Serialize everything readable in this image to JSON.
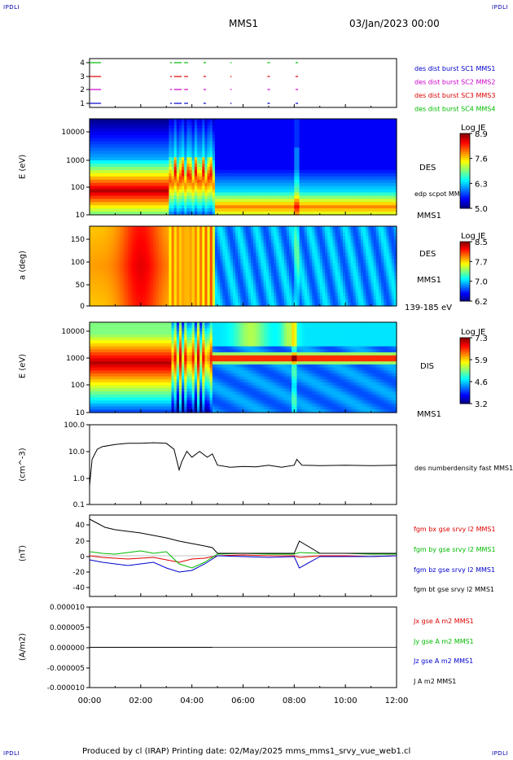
{
  "corner_labels": [
    "IPDLI",
    "IPDLI",
    "IPDLI",
    "IPDLI"
  ],
  "header": {
    "mission": "MMS1",
    "date": "03/Jan/2023 00:00"
  },
  "footer": "Produced by cl (IRAP)   Printing date: 02/May/2025   mms_mms1_srvy_vue_web1.cl",
  "colors": {
    "red": "#dd0000",
    "green": "#00bb00",
    "blue": "#0000cc",
    "magenta": "#cc00cc",
    "black": "#000000"
  },
  "chart_data": [
    {
      "type": "line",
      "name": "burst-availability",
      "yticks": [
        "4",
        "3",
        "2",
        "1"
      ],
      "xrange": [
        0,
        12
      ],
      "legend": [
        {
          "label": "des dist burst SC1 MMS1",
          "color": "#0000cc"
        },
        {
          "label": "des dist burst SC2 MMS2",
          "color": "#cc00cc"
        },
        {
          "label": "des dist burst SC3 MMS3",
          "color": "#dd0000"
        },
        {
          "label": "des dist burst SC4 MMS4",
          "color": "#00bb00"
        }
      ],
      "intervals": [
        [
          0.0,
          0.45
        ],
        [
          3.15,
          3.22
        ],
        [
          3.3,
          3.6
        ],
        [
          3.7,
          3.85
        ],
        [
          4.45,
          4.55
        ],
        [
          5.5,
          5.55
        ],
        [
          6.95,
          7.05
        ],
        [
          8.05,
          8.15
        ]
      ]
    },
    {
      "type": "heatmap",
      "name": "des-energy",
      "ylabel": "E (eV)",
      "yticks": [
        "10000",
        "1000",
        "100",
        "10"
      ],
      "yrange": [
        10,
        30000
      ],
      "ylog": true,
      "side_labels": [
        "DES",
        "edp scpot MMS1",
        "MMS1"
      ],
      "colorbar": {
        "title": "Log JE",
        "ticks": [
          "8.9",
          "7.6",
          "6.3",
          "5.0"
        ]
      }
    },
    {
      "type": "heatmap",
      "name": "des-pitch-angle",
      "ylabel": "a (deg)",
      "yticks": [
        "150",
        "100",
        "50",
        "0"
      ],
      "yrange": [
        0,
        180
      ],
      "side_labels": [
        "DES",
        "MMS1",
        "139-185 eV"
      ],
      "colorbar": {
        "title": "Log JE",
        "ticks": [
          "8.5",
          "7.7",
          "7.0",
          "6.2"
        ]
      }
    },
    {
      "type": "heatmap",
      "name": "dis-energy",
      "ylabel": "E (eV)",
      "yticks": [
        "10000",
        "1000",
        "100",
        "10"
      ],
      "yrange": [
        10,
        30000
      ],
      "ylog": true,
      "side_labels": [
        "DIS",
        "MMS1"
      ],
      "colorbar": {
        "title": "Log JE",
        "ticks": [
          "7.3",
          "5.9",
          "4.6",
          "3.2"
        ]
      }
    },
    {
      "type": "line",
      "name": "number-density",
      "ylabel": "(cm^-3)",
      "yticks": [
        "100.0",
        "10.0",
        "1.0",
        "0.1"
      ],
      "ylim": [
        0.1,
        100
      ],
      "ylog": true,
      "series": [
        {
          "name": "des numberdensity fast MMS1",
          "color": "#000000",
          "x": [
            0,
            0.1,
            0.3,
            0.5,
            1.0,
            1.5,
            2.0,
            2.5,
            3.0,
            3.3,
            3.5,
            3.6,
            3.8,
            4.0,
            4.3,
            4.6,
            4.8,
            5.0,
            5.5,
            6.0,
            6.5,
            7.0,
            7.5,
            8.0,
            8.1,
            8.3,
            9.0,
            10.0,
            11.0,
            12.0
          ],
          "y": [
            0.5,
            5,
            12,
            15,
            18,
            20,
            20,
            21,
            20,
            12,
            2,
            4,
            10,
            6,
            10,
            6,
            8,
            3,
            2.5,
            2.7,
            2.6,
            3,
            2.5,
            3,
            5,
            3,
            2.9,
            3,
            2.9,
            3.0
          ]
        }
      ]
    },
    {
      "type": "line",
      "name": "magnetic-field",
      "ylabel": "(nT)",
      "yticks": [
        "40",
        "20",
        "0",
        "-20",
        "-40"
      ],
      "ylim": [
        -50,
        50
      ],
      "series": [
        {
          "name": "fgm bx gse srvy l2 MMS1",
          "color": "#dd0000",
          "x": [
            0,
            0.5,
            1,
            1.5,
            2,
            2.5,
            3,
            3.5,
            4,
            4.5,
            5,
            6,
            7,
            8,
            8.2,
            9,
            10,
            11,
            12
          ],
          "y": [
            0,
            -2,
            -3,
            -4,
            -3,
            -2,
            -5,
            -8,
            -4,
            -3,
            0,
            1,
            0,
            0,
            -2,
            0,
            0,
            -1,
            0
          ]
        },
        {
          "name": "fgm by gse srvy l2 MMS1",
          "color": "#00bb00",
          "x": [
            0,
            0.5,
            1,
            1.5,
            2,
            2.5,
            3,
            3.5,
            4,
            4.5,
            5,
            6,
            7,
            8,
            8.2,
            9,
            10,
            11,
            12
          ],
          "y": [
            5,
            3,
            2,
            4,
            6,
            3,
            5,
            -10,
            -15,
            -8,
            2,
            3,
            2,
            2,
            4,
            3,
            3,
            2,
            2
          ]
        },
        {
          "name": "fgm bz gse srvy l2 MMS1",
          "color": "#0000cc",
          "x": [
            0,
            0.5,
            1,
            1.5,
            2,
            2.5,
            3,
            3.5,
            4,
            4.5,
            5,
            6,
            7,
            8,
            8.2,
            9,
            10,
            11,
            12
          ],
          "y": [
            -5,
            -8,
            -10,
            -12,
            -10,
            -8,
            -15,
            -20,
            -18,
            -10,
            0,
            -1,
            -2,
            -1,
            -15,
            -1,
            -1,
            -1,
            0
          ]
        },
        {
          "name": "fgm bt gse srvy l2 MMS1",
          "color": "#000000",
          "x": [
            0,
            0.3,
            0.6,
            1,
            1.5,
            2,
            2.5,
            3,
            3.5,
            4,
            4.5,
            4.8,
            5,
            6,
            7,
            8,
            8.2,
            9,
            10,
            11,
            12
          ],
          "y": [
            45,
            40,
            35,
            32,
            30,
            28,
            25,
            22,
            18,
            15,
            12,
            10,
            3,
            3,
            3,
            3,
            18,
            3,
            3,
            3,
            3
          ]
        }
      ]
    },
    {
      "type": "line",
      "name": "current-density",
      "ylabel": "(A/m2)",
      "yticks": [
        "0.000010",
        "0.000005",
        "0.000000",
        "-0.000005",
        "-0.000010"
      ],
      "ylim": [
        -1e-05,
        1e-05
      ],
      "series": [
        {
          "name": "Jx gse A m2 MMS1",
          "color": "#dd0000",
          "x": [
            0,
            1,
            2,
            3,
            4,
            4.8
          ],
          "y": [
            0,
            0,
            0,
            0,
            0,
            0
          ]
        },
        {
          "name": "Jy gse A m2 MMS1",
          "color": "#00bb00",
          "x": [
            0,
            1,
            2,
            3,
            4,
            4.8
          ],
          "y": [
            0,
            0,
            0,
            0,
            0,
            0
          ]
        },
        {
          "name": "Jz gse A m2 MMS1",
          "color": "#0000cc",
          "x": [
            0,
            1,
            2,
            3,
            4,
            4.8
          ],
          "y": [
            0,
            0,
            0,
            0,
            0,
            0
          ]
        },
        {
          "name": "J A m2 MMS1",
          "color": "#000000",
          "x": [
            0,
            4.8
          ],
          "y": [
            0,
            0
          ]
        }
      ],
      "xticks": [
        "00:00",
        "02:00",
        "04:00",
        "06:00",
        "08:00",
        "10:00",
        "12:00"
      ]
    }
  ]
}
